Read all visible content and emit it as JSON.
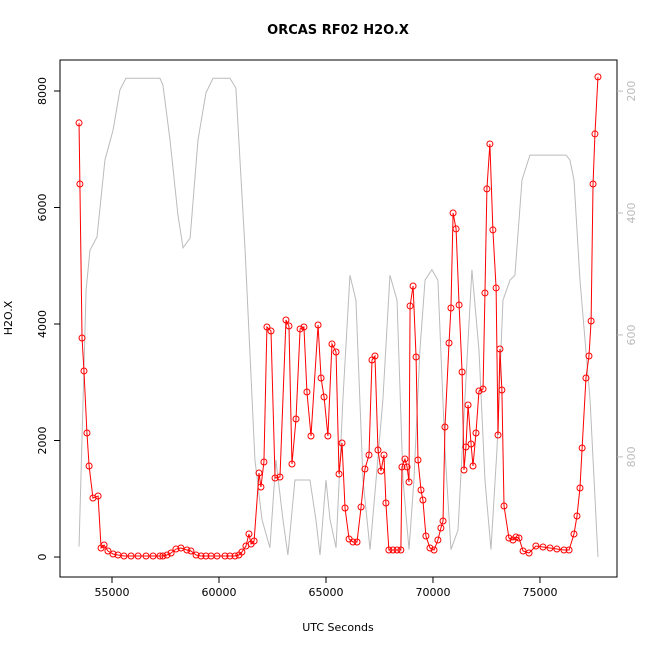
{
  "chart_data": {
    "type": "line",
    "title": "ORCAS RF02 H2O.X",
    "x_label": "UTC Seconds",
    "y_label": "H2O.X",
    "xlim": [
      52570,
      78600
    ],
    "ylim": [
      -343,
      8532
    ],
    "y2lim": [
      997,
      149
    ],
    "xticks": [
      55000,
      60000,
      65000,
      70000,
      75000
    ],
    "yticks": [
      0,
      2000,
      4000,
      6000,
      8000
    ],
    "y2ticks": [
      200,
      400,
      600,
      800
    ],
    "series": [
      {
        "color": "#bbbbbb",
        "axis": "y2",
        "markers": false,
        "x": [
          53460,
          53790,
          53970,
          54300,
          54670,
          55050,
          55370,
          55650,
          57240,
          57380,
          57710,
          58080,
          58320,
          58650,
          59020,
          59390,
          59720,
          60510,
          60790,
          61220,
          61680,
          62010,
          62380,
          62660,
          62990,
          63220,
          63550,
          63790,
          64250,
          64530,
          64720,
          65000,
          65190,
          65470,
          65790,
          66120,
          66400,
          66730,
          67060,
          67340,
          67660,
          67990,
          68320,
          68600,
          68880,
          69110,
          69390,
          69630,
          69950,
          70230,
          70560,
          70840,
          71170,
          71540,
          71820,
          72150,
          72430,
          72710,
          72990,
          73270,
          73600,
          73830,
          74160,
          74530,
          76220,
          76400,
          76590,
          76870,
          77340,
          77710
        ],
        "values": [
          947,
          526,
          461,
          439,
          313,
          264,
          198,
          179,
          179,
          190,
          280,
          403,
          457,
          441,
          280,
          203,
          179,
          179,
          195,
          461,
          805,
          903,
          949,
          805,
          903,
          961,
          838,
          838,
          838,
          903,
          961,
          838,
          903,
          949,
          706,
          502,
          543,
          838,
          952,
          838,
          706,
          502,
          543,
          838,
          952,
          838,
          625,
          510,
          493,
          510,
          788,
          952,
          920,
          674,
          493,
          625,
          838,
          952,
          788,
          543,
          510,
          502,
          346,
          305,
          305,
          313,
          346,
          510,
          706,
          964
        ]
      },
      {
        "color": "#ff0000",
        "markers": true,
        "x": [
          53460,
          53500,
          53600,
          53690,
          53830,
          53930,
          54110,
          54350,
          54490,
          54630,
          54810,
          55050,
          55280,
          55560,
          55890,
          56220,
          56590,
          56920,
          57240,
          57380,
          57570,
          57760,
          57990,
          58220,
          58500,
          58690,
          58930,
          59160,
          59390,
          59630,
          59910,
          60280,
          60510,
          60750,
          60930,
          61070,
          61260,
          61400,
          61500,
          61640,
          61870,
          61960,
          62100,
          62240,
          62430,
          62620,
          62850,
          63130,
          63270,
          63410,
          63600,
          63790,
          63970,
          64110,
          64300,
          64630,
          64770,
          64910,
          65090,
          65280,
          65470,
          65610,
          65750,
          65890,
          66080,
          66260,
          66450,
          66640,
          66820,
          67010,
          67150,
          67290,
          67430,
          67570,
          67710,
          67800,
          67940,
          68130,
          68320,
          68500,
          68550,
          68690,
          68790,
          68880,
          68930,
          69070,
          69210,
          69300,
          69440,
          69530,
          69670,
          69860,
          70050,
          70230,
          70370,
          70470,
          70560,
          70750,
          70840,
          70940,
          71080,
          71220,
          71360,
          71450,
          71540,
          71640,
          71780,
          71870,
          72010,
          72150,
          72340,
          72430,
          72520,
          72660,
          72800,
          72950,
          73040,
          73130,
          73220,
          73320,
          73550,
          73740,
          73880,
          74020,
          74210,
          74490,
          74810,
          75140,
          75470,
          75790,
          76120,
          76360,
          76590,
          76730,
          76870,
          76970,
          77150,
          77290,
          77390,
          77480,
          77570,
          77710
        ],
        "values": [
          7452,
          6404,
          3760,
          3194,
          2129,
          1563,
          1013,
          1047,
          155,
          206,
          103,
          52,
          34,
          17,
          17,
          17,
          17,
          17,
          17,
          17,
          34,
          69,
          137,
          155,
          120,
          103,
          34,
          17,
          17,
          17,
          17,
          17,
          17,
          17,
          34,
          86,
          189,
          395,
          223,
          275,
          1442,
          1202,
          1631,
          3949,
          3880,
          1356,
          1374,
          4069,
          3966,
          1597,
          2369,
          3915,
          3949,
          2833,
          2078,
          3983,
          3073,
          2747,
          2078,
          3657,
          3520,
          1425,
          1957,
          841,
          309,
          258,
          258,
          858,
          1511,
          1751,
          3382,
          3451,
          1837,
          1477,
          1751,
          927,
          120,
          120,
          120,
          120,
          1545,
          1683,
          1545,
          1288,
          4310,
          4653,
          3434,
          1666,
          1150,
          979,
          361,
          155,
          120,
          292,
          498,
          618,
          2232,
          3674,
          4275,
          5906,
          5632,
          4327,
          3176,
          1494,
          1889,
          2610,
          1940,
          1563,
          2129,
          2850,
          2885,
          4533,
          6319,
          7091,
          5615,
          4619,
          2095,
          3571,
          2867,
          876,
          326,
          292,
          343,
          326,
          103,
          69,
          189,
          172,
          155,
          137,
          120,
          120,
          395,
          704,
          1185,
          1872,
          3073,
          3451,
          4052,
          6404,
          7263,
          8242
        ]
      }
    ]
  }
}
